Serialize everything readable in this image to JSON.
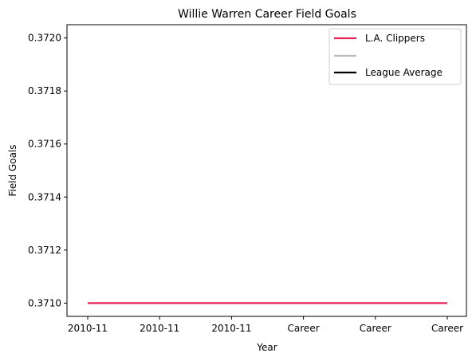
{
  "chart_data": {
    "type": "line",
    "title": "Willie Warren Career Field Goals",
    "xlabel": "Year",
    "ylabel": "Field Goals",
    "categories": [
      "2010-11",
      "2010-11",
      "2010-11",
      "Career",
      "Career",
      "Career"
    ],
    "ylim": [
      0.37095,
      0.37205
    ],
    "yticks": [
      "0.3710",
      "0.3712",
      "0.3714",
      "0.3716",
      "0.3718",
      "0.3720"
    ],
    "ytick_values": [
      0.371,
      0.3712,
      0.3714,
      0.3716,
      0.3718,
      0.372
    ],
    "series": [
      {
        "name": "L.A. Clippers",
        "color": "#e8245a",
        "values": [
          0.371,
          0.371,
          0.371,
          0.371,
          0.371,
          0.371
        ]
      }
    ],
    "legend": {
      "placement": "top-right",
      "entries": [
        {
          "label": "L.A. Clippers",
          "color": "#e8245a"
        },
        {
          "label": "",
          "color": "#bbbbbb"
        },
        {
          "label": "League Average",
          "color": "#000000"
        }
      ]
    },
    "grid": false
  }
}
